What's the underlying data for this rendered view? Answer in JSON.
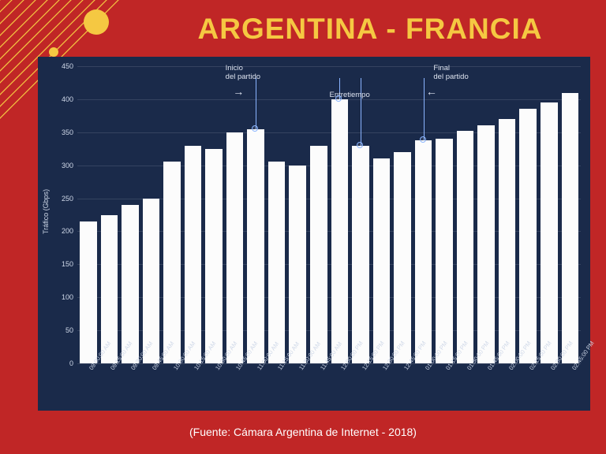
{
  "title": "ARGENTINA - FRANCIA",
  "source": "(Fuente: Cámara Argentina de Internet - 2018)",
  "decor": {
    "line_color": "#f5c842",
    "circle_color": "#f5c842"
  },
  "chart": {
    "type": "bar",
    "background_color": "#1a2a4a",
    "bar_color": "#fcfcfc",
    "grid_color": "rgba(255,255,255,0.12)",
    "text_color": "#cfd8e8",
    "marker_color": "#8ab4ff",
    "yaxis": {
      "title": "Tráfico (Gbps)",
      "min": 0,
      "max": 450,
      "step": 50,
      "ticks": [
        0,
        50,
        100,
        150,
        200,
        250,
        300,
        350,
        400,
        450
      ]
    },
    "xlabels": [
      "09:00:00 AM",
      "09:15:00 AM",
      "09:30:00 AM",
      "09:45:00 AM",
      "10:00:00 AM",
      "10:15:00 AM",
      "10:30:00 AM",
      "10:45:00 AM",
      "11:00:00 AM",
      "11:15:00 AM",
      "11:30:00 AM",
      "11:45:00 AM",
      "12:00:00 PM",
      "12:15:00 PM",
      "12:30:00 PM",
      "12:45:00 PM",
      "01:00:00 PM",
      "01:15:00 PM",
      "01:30:00 PM",
      "01:45:00 PM",
      "02:00:00 PM",
      "02:15:00 PM",
      "02:30:00 PM",
      "02:45:00 PM"
    ],
    "values": [
      215,
      225,
      240,
      250,
      305,
      330,
      325,
      350,
      355,
      305,
      300,
      330,
      400,
      330,
      310,
      320,
      338,
      340,
      352,
      360,
      370,
      385,
      395,
      410
    ],
    "annotations": {
      "inicio_label": "Inicio\ndel partido",
      "entretiempo_label": "Entretiempo",
      "final_label": "Final\ndel partido"
    },
    "markers": [
      {
        "bar_index": 8,
        "label_key": "inicio"
      },
      {
        "bar_index": 12,
        "label_key": "entretiempo_a"
      },
      {
        "bar_index": 13,
        "label_key": "entretiempo_b"
      },
      {
        "bar_index": 16,
        "label_key": "final"
      }
    ]
  }
}
